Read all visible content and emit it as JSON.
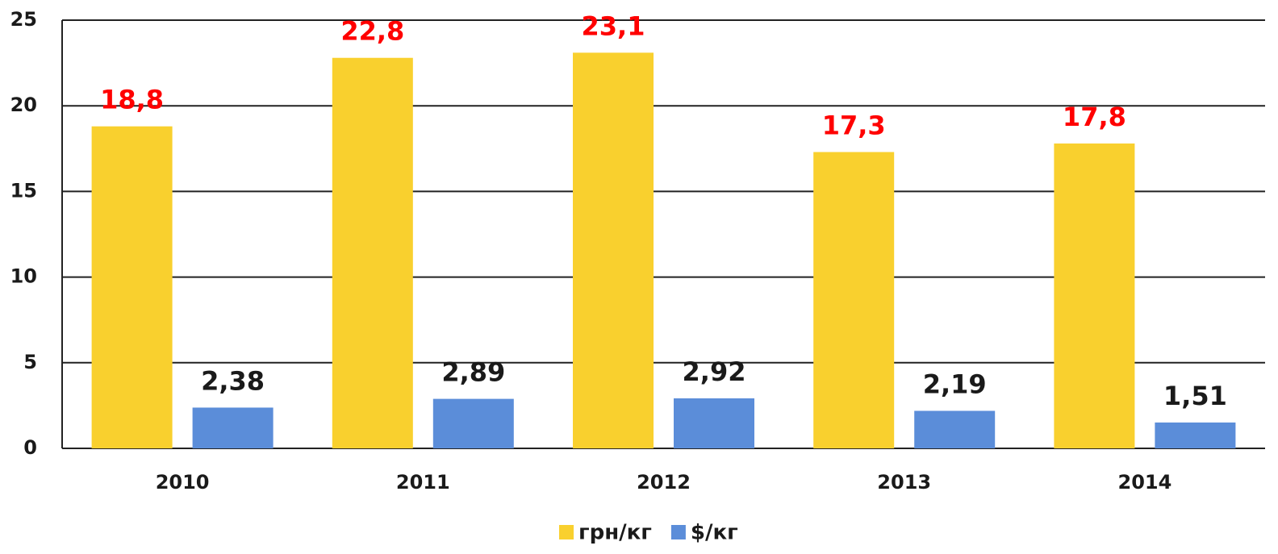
{
  "chart_data": {
    "type": "bar",
    "categories": [
      "2010",
      "2011",
      "2012",
      "2013",
      "2014"
    ],
    "series": [
      {
        "name": "грн/кг",
        "color": "#f9d02e",
        "label_color": "#ff0000",
        "values": [
          18.8,
          22.8,
          23.1,
          17.3,
          17.8
        ],
        "value_labels": [
          "18,8",
          "22,8",
          "23,1",
          "17,3",
          "17,8"
        ]
      },
      {
        "name": "$/кг",
        "color": "#5b8dd9",
        "label_color": "#1a1a1a",
        "values": [
          2.38,
          2.89,
          2.92,
          2.19,
          1.51
        ],
        "value_labels": [
          "2,38",
          "2,89",
          "2,92",
          "2,19",
          "1,51"
        ]
      }
    ],
    "ylim": [
      0,
      25
    ],
    "yticks": [
      0,
      5,
      10,
      15,
      20,
      25
    ],
    "grid": true,
    "legend": "bottom"
  }
}
